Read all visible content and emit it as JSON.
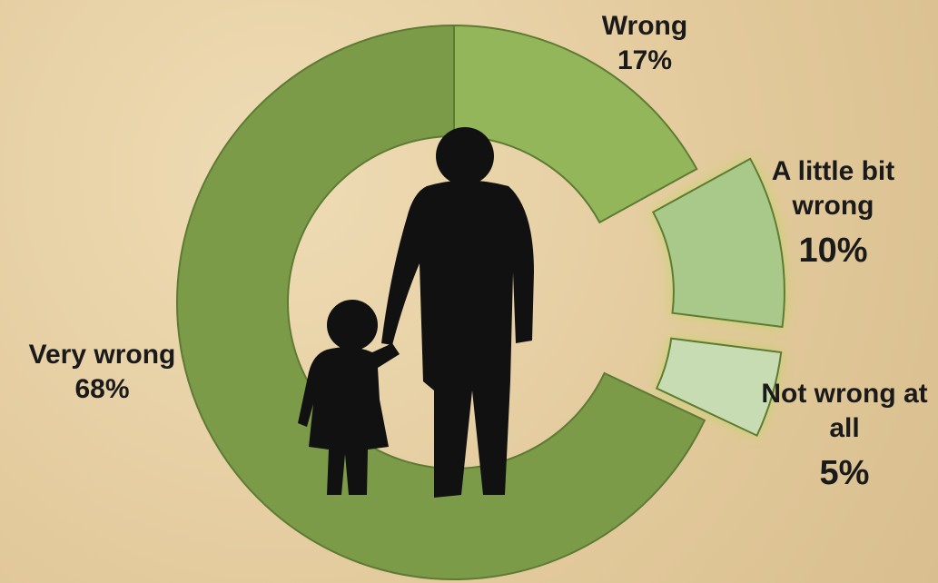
{
  "chart_data": {
    "type": "donut",
    "categories": [
      "Wrong",
      "A little bit wrong",
      "Not wrong at all",
      "Very wrong"
    ],
    "values": [
      17,
      10,
      5,
      68
    ],
    "value_labels": [
      "17%",
      "10%",
      "5%",
      "68%"
    ],
    "colors": [
      "#93b65a",
      "#a9c98a",
      "#c7dcb3",
      "#7b9b48"
    ],
    "exploded": [
      false,
      true,
      true,
      false
    ]
  }
}
